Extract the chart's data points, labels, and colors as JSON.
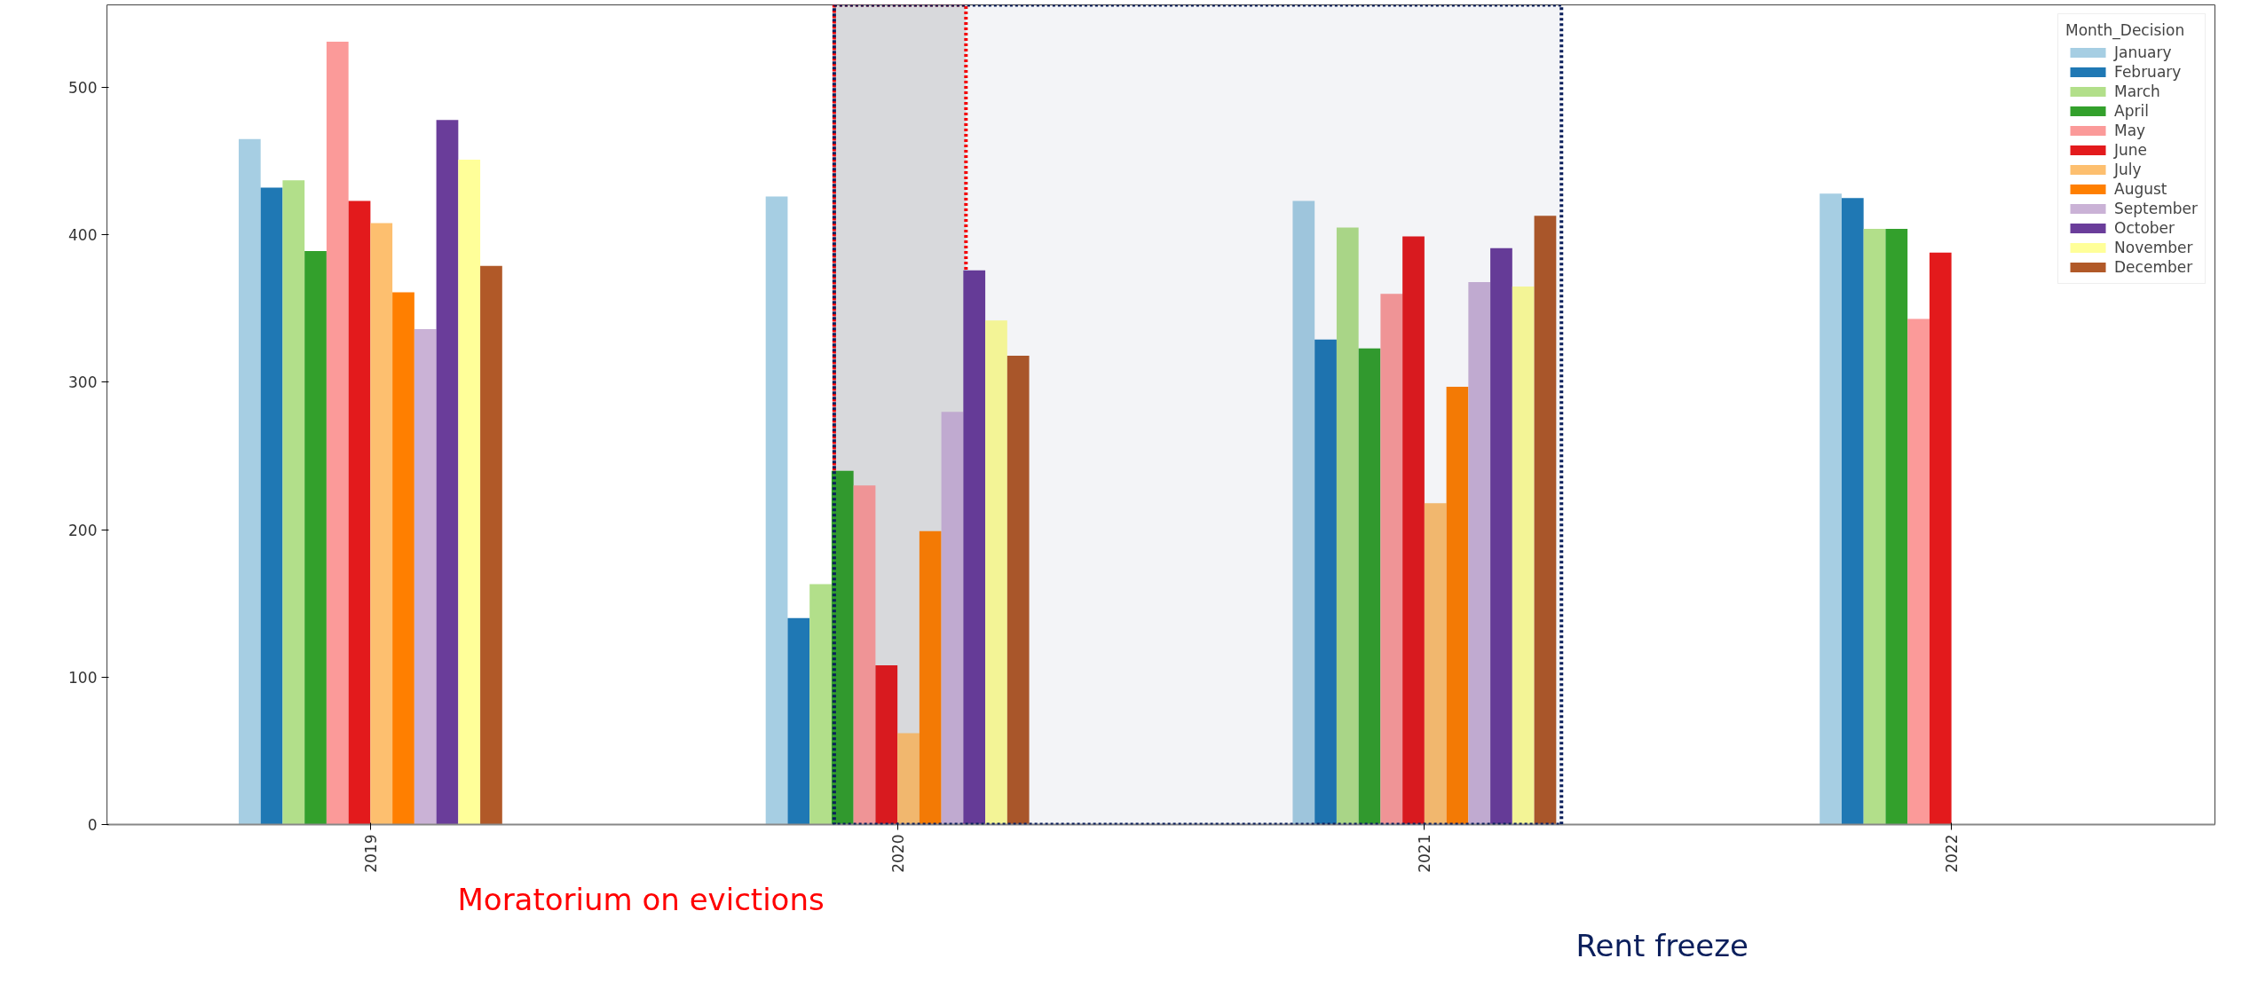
{
  "chart_data": {
    "type": "bar",
    "x": [
      2019,
      2020,
      2021,
      2022
    ],
    "xlim": [
      2018.5,
      2022.5
    ],
    "xticks": [
      2019,
      2020,
      2021,
      2022
    ],
    "ylim": [
      0,
      556
    ],
    "yticks": [
      0,
      100,
      200,
      300,
      400,
      500
    ],
    "grid": false,
    "legend": "top right",
    "legend_title": "Month_Decision",
    "series": [
      {
        "name": "January",
        "color": "#a6cee3",
        "values": [
          465,
          426,
          423,
          428
        ]
      },
      {
        "name": "February",
        "color": "#1f78b4",
        "values": [
          432,
          140,
          329,
          425
        ]
      },
      {
        "name": "March",
        "color": "#b2df8a",
        "values": [
          437,
          163,
          405,
          404
        ]
      },
      {
        "name": "April",
        "color": "#33a02c",
        "values": [
          389,
          240,
          323,
          404
        ]
      },
      {
        "name": "May",
        "color": "#fb9a99",
        "values": [
          531,
          230,
          360,
          343
        ]
      },
      {
        "name": "June",
        "color": "#e31a1c",
        "values": [
          423,
          108,
          399,
          388
        ]
      },
      {
        "name": "July",
        "color": "#fdbf6f",
        "values": [
          408,
          62,
          218,
          null
        ]
      },
      {
        "name": "August",
        "color": "#ff7f00",
        "values": [
          361,
          199,
          297,
          null
        ]
      },
      {
        "name": "September",
        "color": "#cab2d6",
        "values": [
          336,
          280,
          368,
          null
        ]
      },
      {
        "name": "October",
        "color": "#6a3d9a",
        "values": [
          478,
          376,
          391,
          null
        ]
      },
      {
        "name": "November",
        "color": "#ffff99",
        "values": [
          451,
          342,
          365,
          null
        ]
      },
      {
        "name": "December",
        "color": "#b15928",
        "values": [
          379,
          318,
          413,
          null
        ]
      }
    ],
    "bands": [
      {
        "axis": "x",
        "from": 2019.88,
        "to": 2020.13,
        "label": "Moratorium on evictions",
        "color": "#ff0000"
      },
      {
        "axis": "x",
        "from": 2019.88,
        "to": 2021.26,
        "label": "Rent freeze",
        "color": "#0b1f5c"
      }
    ]
  }
}
